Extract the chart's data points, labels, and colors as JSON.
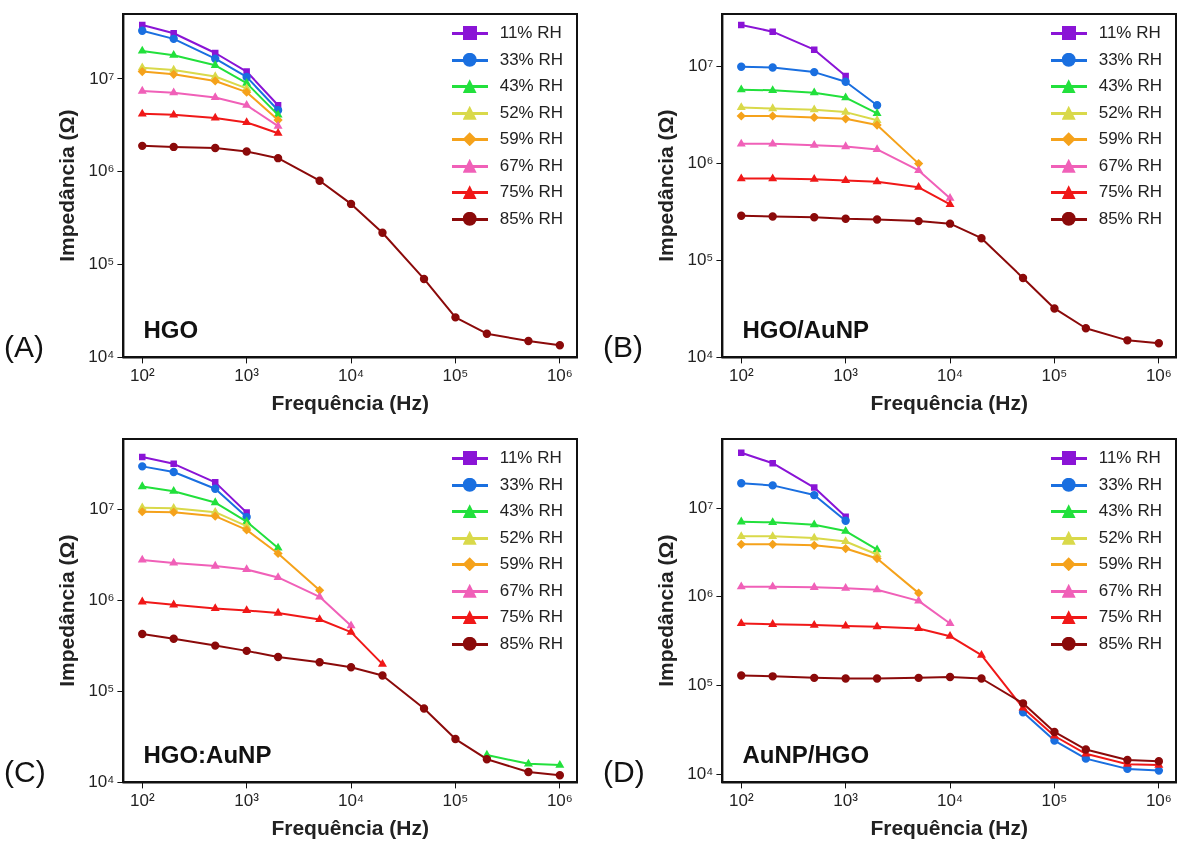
{
  "chart_data": [
    {
      "type": "line",
      "xlabel": "Frequência (Hz)",
      "ylabel": "Impedância (Ω)",
      "annotations": [
        "(A)",
        "HGO"
      ],
      "log": "xy",
      "grid": false,
      "legend": "top right",
      "line_style": "solid",
      "x": [
        100,
        200,
        500,
        1000,
        2000,
        5000,
        10000,
        20000,
        50000,
        100000,
        200000,
        500000,
        1000000
      ],
      "xlim": [
        66,
        1460000
      ],
      "ylim": [
        10000,
        50000000
      ],
      "xticks": [
        {
          "value": 100,
          "label": "10²"
        },
        {
          "value": 1000,
          "label": "10³"
        },
        {
          "value": 10000,
          "label": "10⁴"
        },
        {
          "value": 100000,
          "label": "10⁵"
        },
        {
          "value": 1000000,
          "label": "10⁶"
        }
      ],
      "yticks": [
        {
          "value": 10000,
          "label": "10⁴"
        },
        {
          "value": 100000,
          "label": "10⁵"
        },
        {
          "value": 1000000,
          "label": "10⁶"
        },
        {
          "value": 10000000,
          "label": "10⁷"
        }
      ],
      "series": [
        {
          "name": "11% RH",
          "color": "#8a14d6",
          "marker": "square",
          "values": [
            38000000,
            31000000,
            19000000,
            12000000,
            5200000,
            null,
            null,
            null,
            null,
            null,
            null,
            null,
            null
          ]
        },
        {
          "name": "33% RH",
          "color": "#1a6fe0",
          "marker": "circle",
          "values": [
            33000000,
            27000000,
            16500000,
            10500000,
            4600000,
            null,
            null,
            null,
            null,
            null,
            null,
            null,
            null
          ]
        },
        {
          "name": "43% RH",
          "color": "#22e03c",
          "marker": "triangle",
          "values": [
            20000000,
            18000000,
            14000000,
            9000000,
            4100000,
            null,
            null,
            null,
            null,
            null,
            null,
            null,
            null
          ]
        },
        {
          "name": "52% RH",
          "color": "#d9d94a",
          "marker": "triangle",
          "values": [
            13200000,
            12500000,
            10600000,
            7900000,
            null,
            null,
            null,
            null,
            null,
            null,
            null,
            null,
            null
          ]
        },
        {
          "name": "59% RH",
          "color": "#f5a21b",
          "marker": "diamond",
          "values": [
            12000000,
            11200000,
            9500000,
            7200000,
            3600000,
            null,
            null,
            null,
            null,
            null,
            null,
            null,
            null
          ]
        },
        {
          "name": "67% RH",
          "color": "#f060b8",
          "marker": "triangle",
          "values": [
            7400000,
            7100000,
            6300000,
            5200000,
            3100000,
            null,
            null,
            null,
            null,
            null,
            null,
            null,
            null
          ]
        },
        {
          "name": "75% RH",
          "color": "#f01818",
          "marker": "triangle",
          "values": [
            4200000,
            4100000,
            3800000,
            3400000,
            2600000,
            null,
            null,
            null,
            null,
            null,
            null,
            null,
            null
          ]
        },
        {
          "name": "85% RH",
          "color": "#8b0a0a",
          "marker": "circle",
          "values": [
            1900000,
            1850000,
            1800000,
            1650000,
            1400000,
            800000,
            450000,
            220000,
            70000,
            27000,
            18000,
            15000,
            13500
          ]
        }
      ]
    },
    {
      "type": "line",
      "xlabel": "Frequência (Hz)",
      "ylabel": "Impedância (Ω)",
      "annotations": [
        "(B)",
        "HGO/AuNP"
      ],
      "log": "xy",
      "grid": false,
      "legend": "top right",
      "line_style": "solid",
      "x": [
        100,
        200,
        500,
        1000,
        2000,
        5000,
        10000,
        20000,
        50000,
        100000,
        200000,
        500000,
        1000000
      ],
      "xlim": [
        66,
        1460000
      ],
      "ylim": [
        10000,
        35000000
      ],
      "xticks": [
        {
          "value": 100,
          "label": "10²"
        },
        {
          "value": 1000,
          "label": "10³"
        },
        {
          "value": 10000,
          "label": "10⁴"
        },
        {
          "value": 100000,
          "label": "10⁵"
        },
        {
          "value": 1000000,
          "label": "10⁶"
        }
      ],
      "yticks": [
        {
          "value": 10000,
          "label": "10⁴"
        },
        {
          "value": 100000,
          "label": "10⁵"
        },
        {
          "value": 1000000,
          "label": "10⁶"
        },
        {
          "value": 10000000,
          "label": "10⁷"
        }
      ],
      "series": [
        {
          "name": "11% RH",
          "color": "#8a14d6",
          "marker": "square",
          "values": [
            27000000,
            23000000,
            15000000,
            8000000,
            null,
            null,
            null,
            null,
            null,
            null,
            null,
            null,
            null
          ]
        },
        {
          "name": "33% RH",
          "color": "#1a6fe0",
          "marker": "circle",
          "values": [
            10000000,
            9800000,
            8800000,
            7000000,
            4000000,
            null,
            null,
            null,
            null,
            null,
            null,
            null,
            null
          ]
        },
        {
          "name": "43% RH",
          "color": "#22e03c",
          "marker": "triangle",
          "values": [
            5800000,
            5700000,
            5400000,
            4800000,
            3300000,
            null,
            null,
            null,
            null,
            null,
            null,
            null,
            null
          ]
        },
        {
          "name": "52% RH",
          "color": "#d9d94a",
          "marker": "triangle",
          "values": [
            3800000,
            3700000,
            3600000,
            3400000,
            2800000,
            null,
            null,
            null,
            null,
            null,
            null,
            null,
            null
          ]
        },
        {
          "name": "59% RH",
          "color": "#f5a21b",
          "marker": "diamond",
          "values": [
            3100000,
            3100000,
            3000000,
            2900000,
            2500000,
            1000000,
            null,
            null,
            null,
            null,
            null,
            null,
            null
          ]
        },
        {
          "name": "67% RH",
          "color": "#f060b8",
          "marker": "triangle",
          "values": [
            1600000,
            1600000,
            1550000,
            1500000,
            1400000,
            850000,
            440000,
            null,
            null,
            null,
            null,
            null,
            null
          ]
        },
        {
          "name": "75% RH",
          "color": "#f01818",
          "marker": "triangle",
          "values": [
            700000,
            700000,
            690000,
            670000,
            650000,
            570000,
            380000,
            null,
            null,
            null,
            null,
            null,
            null
          ]
        },
        {
          "name": "85% RH",
          "color": "#8b0a0a",
          "marker": "circle",
          "values": [
            290000,
            285000,
            280000,
            270000,
            265000,
            255000,
            240000,
            170000,
            66000,
            32000,
            20000,
            15000,
            14000
          ]
        }
      ]
    },
    {
      "type": "line",
      "xlabel": "Frequência (Hz)",
      "ylabel": "Impedância (Ω)",
      "annotations": [
        "(C)",
        "HGO:AuNP"
      ],
      "log": "xy",
      "grid": false,
      "legend": "top right",
      "line_style": "solid",
      "x": [
        100,
        200,
        500,
        1000,
        2000,
        5000,
        10000,
        20000,
        50000,
        100000,
        200000,
        500000,
        1000000
      ],
      "xlim": [
        66,
        1460000
      ],
      "ylim": [
        10000,
        60000000
      ],
      "xticks": [
        {
          "value": 100,
          "label": "10²"
        },
        {
          "value": 1000,
          "label": "10³"
        },
        {
          "value": 10000,
          "label": "10⁴"
        },
        {
          "value": 100000,
          "label": "10⁵"
        },
        {
          "value": 1000000,
          "label": "10⁶"
        }
      ],
      "yticks": [
        {
          "value": 10000,
          "label": "10⁴"
        },
        {
          "value": 100000,
          "label": "10⁵"
        },
        {
          "value": 1000000,
          "label": "10⁶"
        },
        {
          "value": 10000000,
          "label": "10⁷"
        }
      ],
      "series": [
        {
          "name": "11% RH",
          "color": "#8a14d6",
          "marker": "square",
          "values": [
            38000000,
            32000000,
            20000000,
            9300000,
            null,
            null,
            null,
            null,
            null,
            null,
            null,
            null,
            null
          ]
        },
        {
          "name": "33% RH",
          "color": "#1a6fe0",
          "marker": "circle",
          "values": [
            30000000,
            26000000,
            17000000,
            8300000,
            null,
            null,
            null,
            null,
            null,
            null,
            null,
            null,
            null
          ]
        },
        {
          "name": "43% RH",
          "color": "#22e03c",
          "marker": "triangle",
          "values": [
            18000000,
            16000000,
            12000000,
            7400000,
            3800000,
            null,
            null,
            null,
            null,
            null,
            20000,
            16000,
            15500
          ]
        },
        {
          "name": "52% RH",
          "color": "#d9d94a",
          "marker": "triangle",
          "values": [
            10500000,
            10400000,
            9400000,
            6600000,
            null,
            null,
            null,
            null,
            null,
            null,
            null,
            null,
            null
          ]
        },
        {
          "name": "59% RH",
          "color": "#f5a21b",
          "marker": "diamond",
          "values": [
            9500000,
            9400000,
            8500000,
            6000000,
            3300000,
            1300000,
            null,
            null,
            null,
            null,
            null,
            null,
            null
          ]
        },
        {
          "name": "67% RH",
          "color": "#f060b8",
          "marker": "triangle",
          "values": [
            2800000,
            2600000,
            2400000,
            2200000,
            1800000,
            1100000,
            530000,
            null,
            null,
            null,
            null,
            null,
            null
          ]
        },
        {
          "name": "75% RH",
          "color": "#f01818",
          "marker": "triangle",
          "values": [
            970000,
            900000,
            820000,
            780000,
            730000,
            620000,
            450000,
            200000,
            null,
            null,
            null,
            null,
            null
          ]
        },
        {
          "name": "85% RH",
          "color": "#8b0a0a",
          "marker": "circle",
          "values": [
            430000,
            380000,
            320000,
            280000,
            240000,
            210000,
            185000,
            150000,
            65000,
            30000,
            18000,
            13000,
            12000
          ]
        }
      ]
    },
    {
      "type": "line",
      "xlabel": "Frequência (Hz)",
      "ylabel": "Impedância (Ω)",
      "annotations": [
        "(D)",
        "AuNP/HGO"
      ],
      "log": "xy",
      "grid": false,
      "legend": "top right",
      "line_style": "solid",
      "x": [
        100,
        200,
        500,
        1000,
        2000,
        5000,
        10000,
        20000,
        50000,
        100000,
        200000,
        500000,
        1000000
      ],
      "xlim": [
        66,
        1460000
      ],
      "ylim": [
        8100,
        60000000
      ],
      "xticks": [
        {
          "value": 100,
          "label": "10²"
        },
        {
          "value": 1000,
          "label": "10³"
        },
        {
          "value": 10000,
          "label": "10⁴"
        },
        {
          "value": 100000,
          "label": "10⁵"
        },
        {
          "value": 1000000,
          "label": "10⁶"
        }
      ],
      "yticks": [
        {
          "value": 10000,
          "label": "10⁴"
        },
        {
          "value": 100000,
          "label": "10⁵"
        },
        {
          "value": 1000000,
          "label": "10⁶"
        },
        {
          "value": 10000000,
          "label": "10⁷"
        }
      ],
      "series": [
        {
          "name": "11% RH",
          "color": "#8a14d6",
          "marker": "square",
          "values": [
            42000000,
            32000000,
            17000000,
            8000000,
            null,
            null,
            null,
            null,
            null,
            null,
            null,
            null,
            null
          ]
        },
        {
          "name": "33% RH",
          "color": "#1a6fe0",
          "marker": "circle",
          "values": [
            19000000,
            18000000,
            14000000,
            7200000,
            null,
            null,
            null,
            null,
            50000,
            24000,
            15000,
            11500,
            11000
          ]
        },
        {
          "name": "43% RH",
          "color": "#22e03c",
          "marker": "triangle",
          "values": [
            7000000,
            6900000,
            6500000,
            5500000,
            3400000,
            null,
            null,
            null,
            null,
            null,
            null,
            null,
            null
          ]
        },
        {
          "name": "52% RH",
          "color": "#d9d94a",
          "marker": "triangle",
          "values": [
            4800000,
            4800000,
            4600000,
            4200000,
            3000000,
            null,
            null,
            null,
            null,
            null,
            null,
            null,
            null
          ]
        },
        {
          "name": "59% RH",
          "color": "#f5a21b",
          "marker": "diamond",
          "values": [
            3900000,
            3900000,
            3800000,
            3500000,
            2700000,
            1100000,
            null,
            null,
            null,
            null,
            null,
            null,
            null
          ]
        },
        {
          "name": "67% RH",
          "color": "#f060b8",
          "marker": "triangle",
          "values": [
            1300000,
            1300000,
            1280000,
            1250000,
            1200000,
            900000,
            500000,
            null,
            null,
            null,
            null,
            null,
            null
          ]
        },
        {
          "name": "75% RH",
          "color": "#f01818",
          "marker": "triangle",
          "values": [
            500000,
            490000,
            480000,
            470000,
            460000,
            440000,
            360000,
            220000,
            56000,
            27000,
            17000,
            13000,
            12700
          ]
        },
        {
          "name": "85% RH",
          "color": "#8b0a0a",
          "marker": "circle",
          "values": [
            130000,
            127000,
            122000,
            120000,
            120000,
            122000,
            125000,
            120000,
            63000,
            30000,
            19000,
            14500,
            14000
          ]
        }
      ]
    }
  ]
}
